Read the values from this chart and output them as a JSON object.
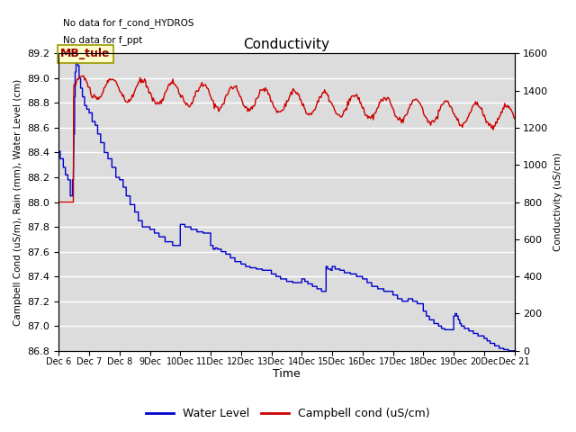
{
  "title": "Conductivity",
  "xlabel": "Time",
  "ylabel_left": "Campbell Cond (uS/m), Rain (mm), Water Level (cm)",
  "ylabel_right": "Conductivity (uS/cm)",
  "top_note1": "No data for f_cond_HYDROS",
  "top_note2": "No data for f_ppt",
  "legend_label1": "Water Level",
  "legend_label2": "Campbell cond (uS/cm)",
  "legend_box_label": "MB_tule",
  "ylim_left": [
    86.8,
    89.2
  ],
  "ylim_right": [
    0,
    1600
  ],
  "yticks_left": [
    86.8,
    87.0,
    87.2,
    87.4,
    87.6,
    87.8,
    88.0,
    88.2,
    88.4,
    88.6,
    88.8,
    89.0,
    89.2
  ],
  "yticks_right": [
    0,
    200,
    400,
    600,
    800,
    1000,
    1200,
    1400,
    1600
  ],
  "xtick_positions": [
    6,
    7,
    8,
    9,
    10,
    11,
    12,
    13,
    14,
    15,
    16,
    17,
    18,
    19,
    20,
    21
  ],
  "xtick_labels": [
    "Dec 6",
    "Dec 7",
    "Dec 8",
    "9Dec",
    "10Dec",
    "11Dec",
    "12Dec",
    "13Dec",
    "14Dec",
    "15Dec",
    "16Dec",
    "17Dec",
    "18Dec",
    "19Dec",
    "20Dec",
    "Dec 21"
  ],
  "color_blue": "#0000cc",
  "color_red": "#cc0000",
  "plot_bg": "#dcdcdc",
  "fig_bg": "#ffffff",
  "grid_color": "#ffffff",
  "box_face": "#ffffcc",
  "box_edge": "#999900"
}
